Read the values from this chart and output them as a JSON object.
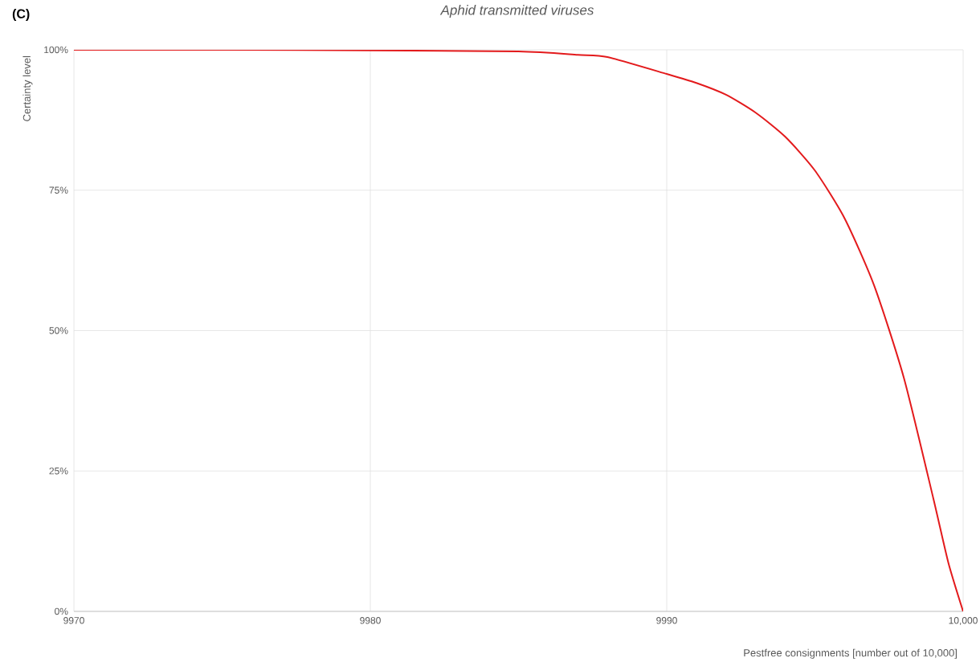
{
  "chart_data": {
    "type": "line",
    "title": "Aphid transmitted viruses",
    "xlabel": "Pestfree consignments [number out of 10,000]",
    "ylabel": "Certainty level",
    "annotations": [
      "(C)"
    ],
    "x": [
      9970,
      9975,
      9980,
      9985,
      9987,
      9988,
      9990,
      9991,
      9992,
      9993,
      9994,
      9995,
      9996,
      9997,
      9998,
      9999,
      9999.5,
      10000
    ],
    "series": [
      {
        "color": "#e31a1c",
        "values": [
          100,
          100,
          99.9,
          99.7,
          99.1,
          98.7,
          95.7,
          94.1,
          92,
          88.8,
          84.5,
          78.5,
          70,
          58,
          41.6,
          20,
          8.7,
          0
        ]
      }
    ],
    "xlim": [
      9970,
      10000
    ],
    "ylim": [
      0,
      100
    ],
    "xticks": [
      9970,
      9980,
      9990,
      {
        "value": 10000,
        "label": "10,000"
      }
    ],
    "yticks": [
      {
        "value": 0,
        "label": "0%"
      },
      {
        "value": 25,
        "label": "25%"
      },
      {
        "value": 50,
        "label": "50%"
      },
      {
        "value": 75,
        "label": "75%"
      },
      {
        "value": 100,
        "label": "100%"
      }
    ],
    "grid": true,
    "marker": "none",
    "line_style": "solid"
  }
}
